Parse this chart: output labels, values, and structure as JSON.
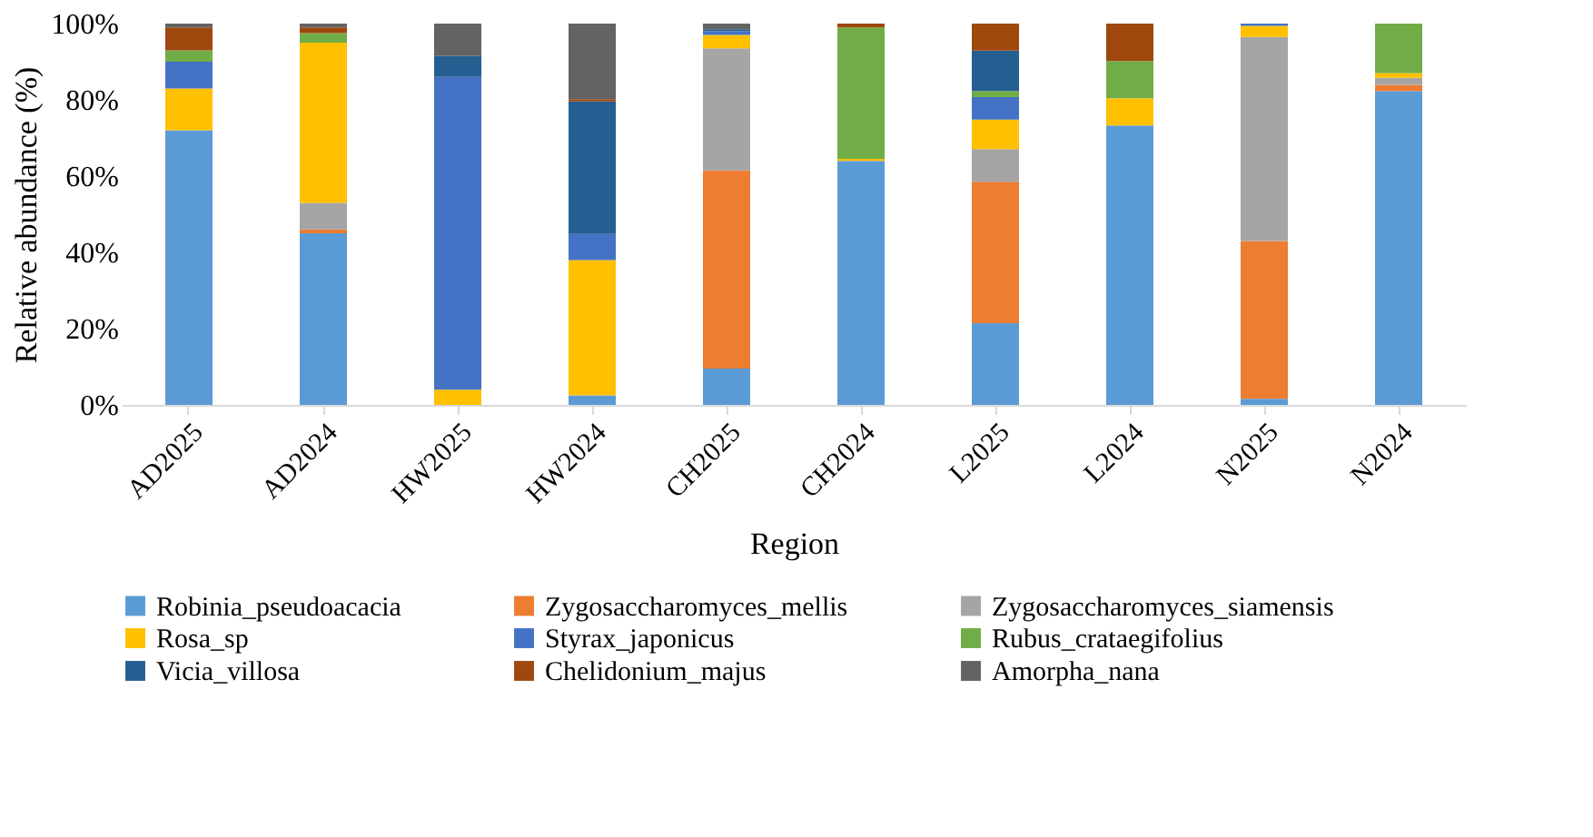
{
  "chart_data": {
    "type": "bar",
    "stacked": true,
    "xlabel": "Region",
    "ylabel": "Relative abundance (%)",
    "categories": [
      "AD2025",
      "AD2024",
      "HW2025",
      "HW2024",
      "CH2025",
      "CH2024",
      "L2025",
      "L2024",
      "N2025",
      "N2024"
    ],
    "series": [
      {
        "name": "Robinia_pseudoacacia",
        "color": "#5b9bd5",
        "values": [
          72,
          45,
          0,
          2.5,
          9.5,
          64,
          21.4,
          73.3,
          1.6,
          82.3
        ]
      },
      {
        "name": "Zygosaccharomyces_mellis",
        "color": "#ed7d31",
        "values": [
          0,
          1,
          0,
          0,
          52,
          0,
          37.1,
          0,
          41.4,
          1.6
        ]
      },
      {
        "name": "Zygosaccharomyces_siamensis",
        "color": "#a5a5a5",
        "values": [
          0,
          7,
          0,
          0,
          32,
          0,
          8.6,
          0,
          53.5,
          1.9
        ]
      },
      {
        "name": "Rosa_sp",
        "color": "#ffc000",
        "values": [
          11,
          42,
          4,
          35.5,
          3.5,
          0.5,
          7.7,
          7.1,
          2.9,
          1.2
        ]
      },
      {
        "name": "Styrax_japonicus",
        "color": "#4472c4",
        "values": [
          7,
          0,
          82,
          6.8,
          1,
          0,
          5.9,
          0,
          0.6,
          0
        ]
      },
      {
        "name": "Rubus_crataegifolius",
        "color": "#70ad47",
        "values": [
          3,
          2.5,
          0,
          0,
          0,
          34.5,
          1.6,
          9.8,
          0,
          13
        ]
      },
      {
        "name": "Vicia_villosa",
        "color": "#255e91",
        "values": [
          0,
          0,
          5.5,
          34.8,
          0.5,
          0,
          10.6,
          0,
          0,
          0
        ]
      },
      {
        "name": "Chelidonium_majus",
        "color": "#9e480e",
        "values": [
          6,
          1.5,
          0,
          0.6,
          0,
          1,
          7.1,
          9.8,
          0,
          0
        ]
      },
      {
        "name": "Amorpha_nana",
        "color": "#636363",
        "values": [
          1,
          1,
          8.5,
          19.8,
          1.5,
          0,
          0,
          0,
          0,
          0
        ]
      }
    ],
    "ylim": [
      0,
      100
    ],
    "yticks": [
      {
        "value": 0,
        "label": "0%"
      },
      {
        "value": 20,
        "label": "20%"
      },
      {
        "value": 40,
        "label": "40%"
      },
      {
        "value": 60,
        "label": "60%"
      },
      {
        "value": 80,
        "label": "80%"
      },
      {
        "value": 100,
        "label": "100%"
      }
    ],
    "grid": false,
    "legend": "bottom"
  }
}
